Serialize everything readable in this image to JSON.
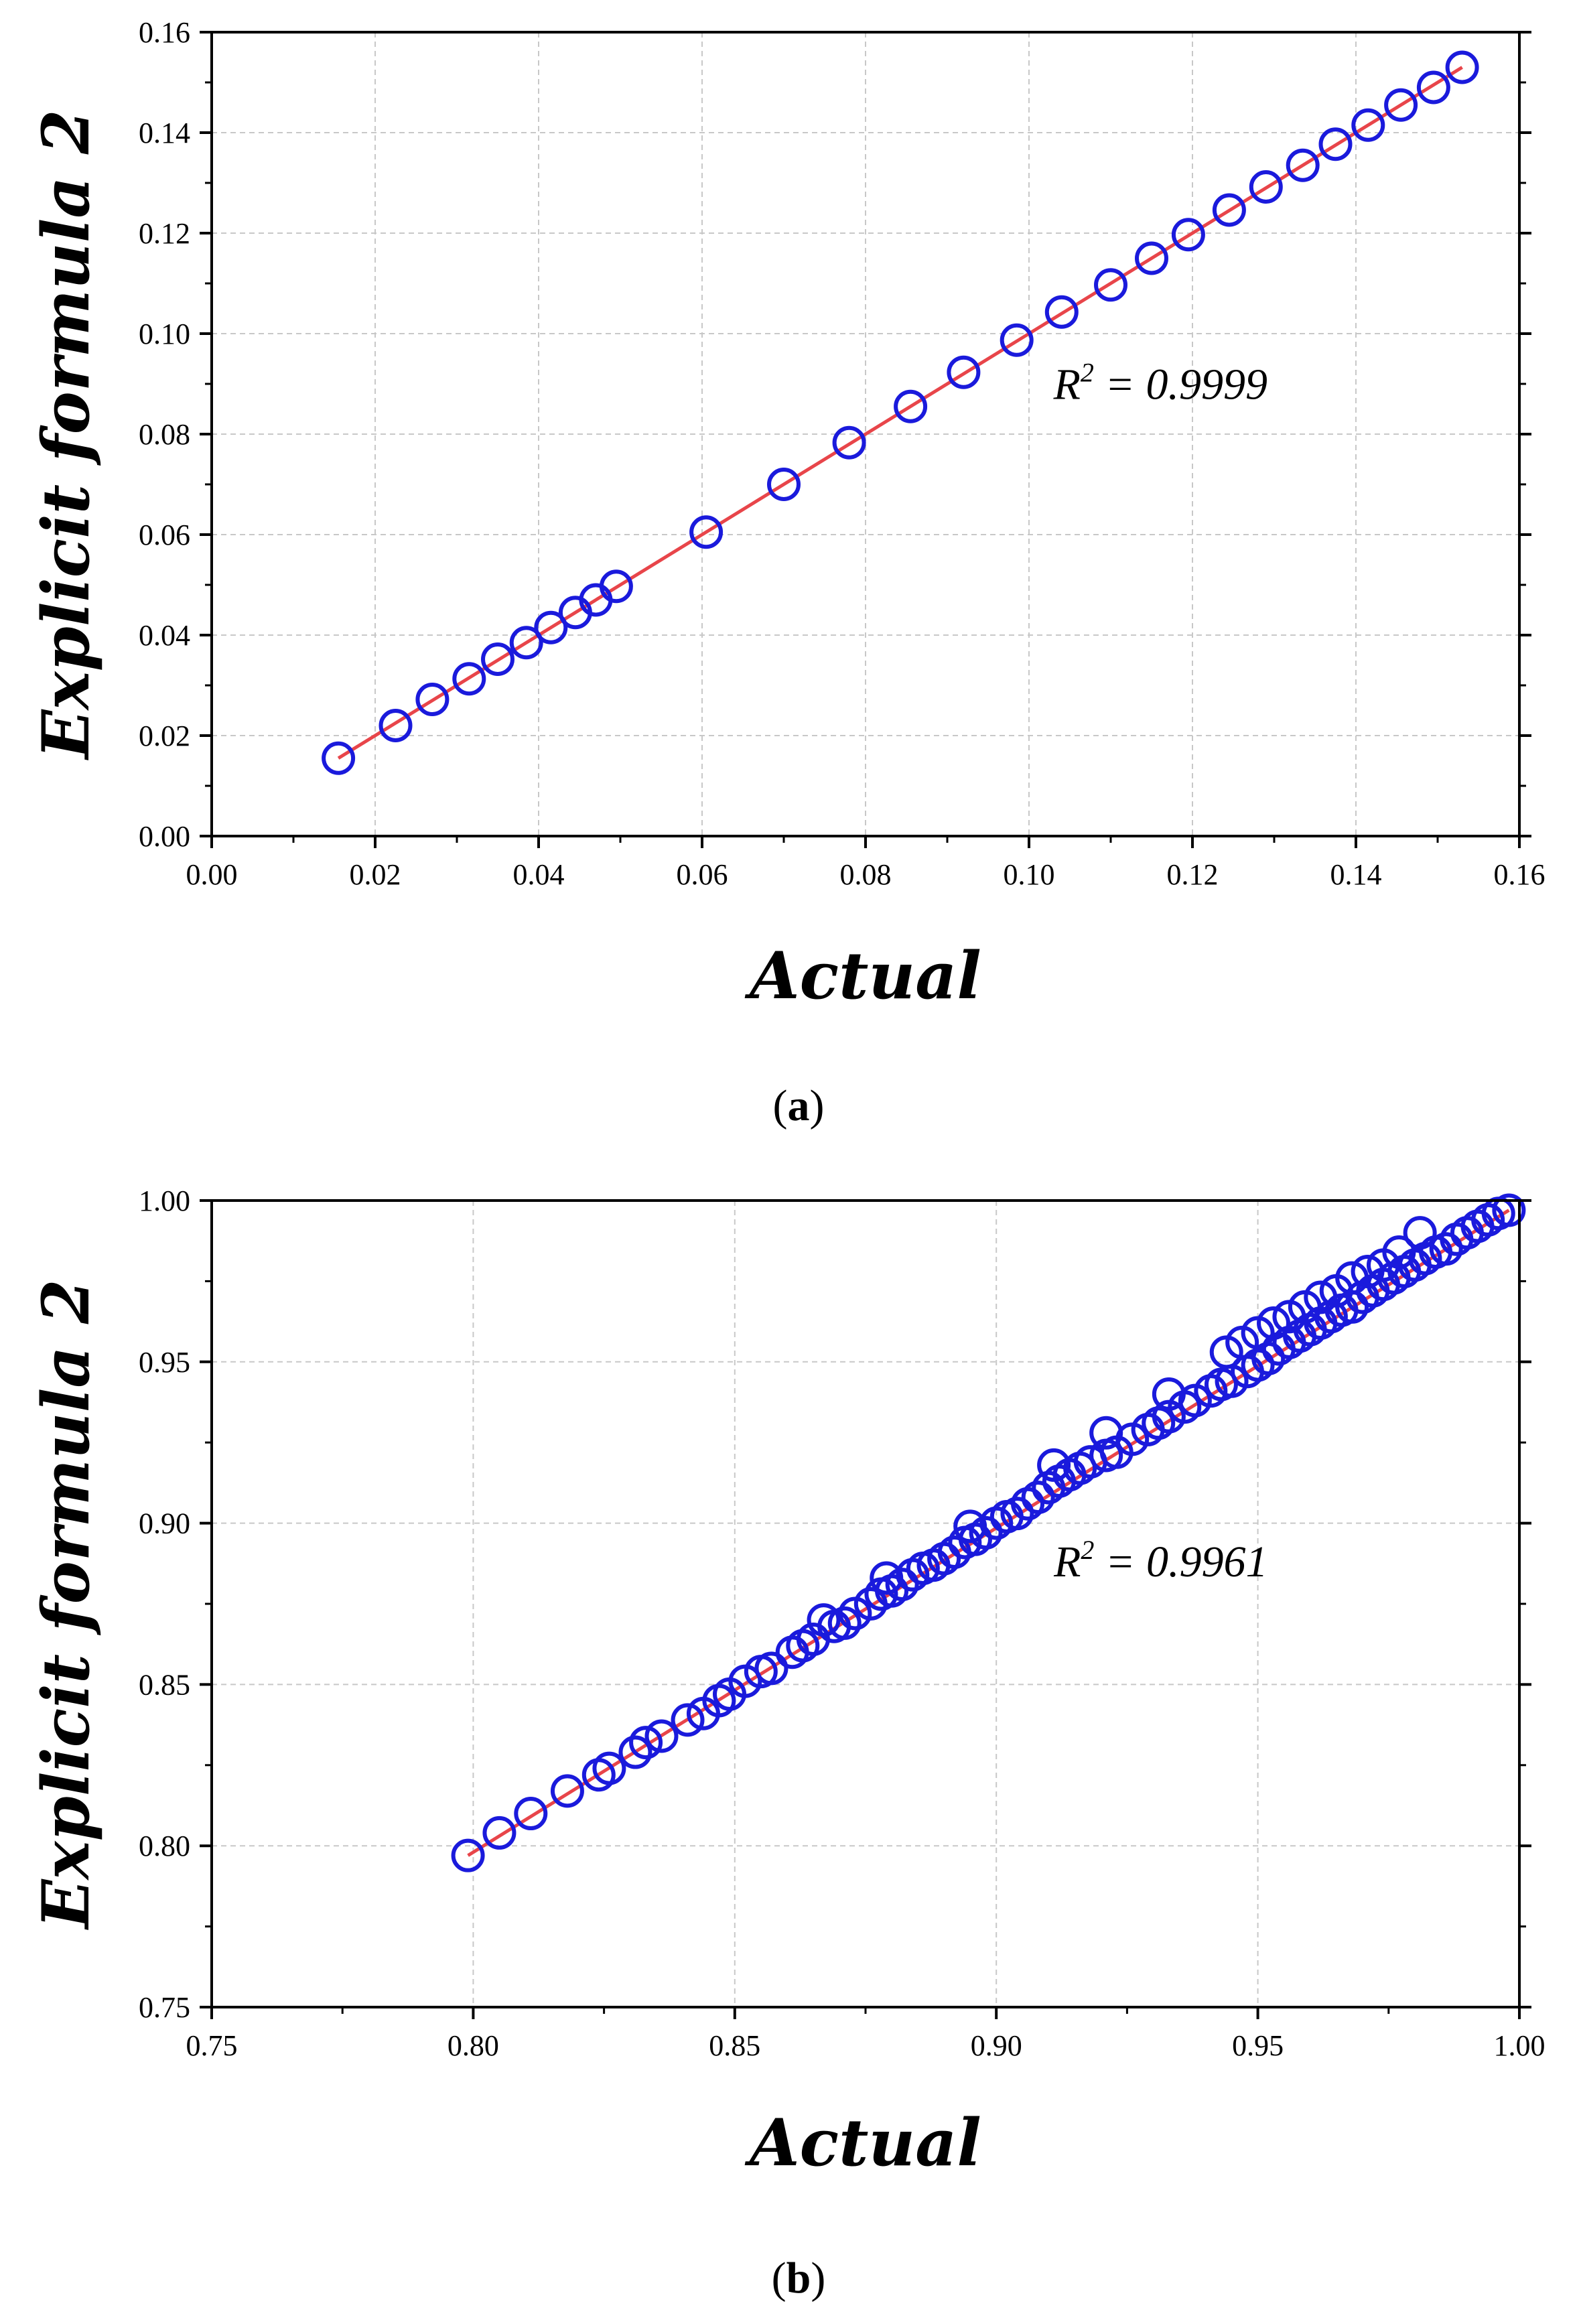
{
  "chart_data": [
    {
      "type": "scatter",
      "panel_label": "(a)",
      "panel_label_parts": [
        "(",
        "a",
        ")"
      ],
      "xlabel": "Actual",
      "ylabel": "Explicit formula 2",
      "xlim": [
        0.0,
        0.16
      ],
      "ylim": [
        0.0,
        0.16
      ],
      "xticks": [
        0.0,
        0.02,
        0.04,
        0.06,
        0.08,
        0.1,
        0.12,
        0.14,
        0.16
      ],
      "yticks": [
        0.0,
        0.02,
        0.04,
        0.06,
        0.08,
        0.1,
        0.12,
        0.14,
        0.16
      ],
      "xtick_labels": [
        "0.00",
        "0.02",
        "0.04",
        "0.06",
        "0.08",
        "0.10",
        "0.12",
        "0.14",
        "0.16"
      ],
      "ytick_labels": [
        "0.00",
        "0.02",
        "0.04",
        "0.06",
        "0.08",
        "0.10",
        "0.12",
        "0.14",
        "0.16"
      ],
      "grid": true,
      "annotation": {
        "symbol": "R",
        "superscript": "2",
        "text": " = 0.9999",
        "at": [
          0.103,
          0.087
        ]
      },
      "fit_line": {
        "x": [
          0.0155,
          0.153
        ],
        "y": [
          0.0155,
          0.153
        ],
        "color": "#e8454a"
      },
      "marker_color": "#1a1adc",
      "series": [
        {
          "name": "data",
          "x": [
            0.0155,
            0.0225,
            0.027,
            0.0315,
            0.035,
            0.0385,
            0.0415,
            0.0445,
            0.047,
            0.0495,
            0.0605,
            0.07,
            0.078,
            0.0855,
            0.092,
            0.0985,
            0.104,
            0.11,
            0.115,
            0.1195,
            0.1245,
            0.129,
            0.1335,
            0.1375,
            0.1415,
            0.1455,
            0.1495,
            0.153
          ],
          "y": [
            0.0155,
            0.022,
            0.0272,
            0.0313,
            0.0352,
            0.0385,
            0.0415,
            0.0445,
            0.047,
            0.0497,
            0.0605,
            0.07,
            0.0783,
            0.0855,
            0.0923,
            0.0987,
            0.1043,
            0.1097,
            0.115,
            0.1197,
            0.1246,
            0.1292,
            0.1335,
            0.1377,
            0.1415,
            0.1455,
            0.149,
            0.153
          ]
        }
      ]
    },
    {
      "type": "scatter",
      "panel_label": "(b)",
      "panel_label_parts": [
        "(",
        "b",
        ")"
      ],
      "xlabel": "Actual",
      "ylabel": "Explicit formula 2",
      "xlim": [
        0.75,
        1.0
      ],
      "ylim": [
        0.75,
        1.0
      ],
      "xticks": [
        0.75,
        0.8,
        0.85,
        0.9,
        0.95,
        1.0
      ],
      "yticks": [
        0.75,
        0.8,
        0.85,
        0.9,
        0.95,
        1.0
      ],
      "xtick_labels": [
        "0.75",
        "0.80",
        "0.85",
        "0.90",
        "0.95",
        "1.00"
      ],
      "ytick_labels": [
        "0.75",
        "0.80",
        "0.85",
        "0.90",
        "0.95",
        "1.00"
      ],
      "grid": true,
      "annotation": {
        "symbol": "R",
        "superscript": "2",
        "text": " = 0.9961",
        "at": [
          0.911,
          0.8835
        ]
      },
      "fit_line": {
        "x": [
          0.799,
          0.998
        ],
        "y": [
          0.797,
          0.997
        ],
        "color": "#e8454a"
      },
      "marker_color": "#1a1adc",
      "series": [
        {
          "name": "data",
          "x": [
            0.799,
            0.805,
            0.811,
            0.818,
            0.824,
            0.826,
            0.831,
            0.833,
            0.836,
            0.841,
            0.844,
            0.847,
            0.849,
            0.852,
            0.855,
            0.857,
            0.861,
            0.863,
            0.865,
            0.869,
            0.871,
            0.873,
            0.876,
            0.878,
            0.88,
            0.882,
            0.884,
            0.886,
            0.888,
            0.89,
            0.892,
            0.894,
            0.896,
            0.898,
            0.9,
            0.902,
            0.904,
            0.906,
            0.908,
            0.91,
            0.912,
            0.914,
            0.916,
            0.918,
            0.921,
            0.923,
            0.926,
            0.929,
            0.931,
            0.933,
            0.936,
            0.938,
            0.941,
            0.943,
            0.945,
            0.948,
            0.95,
            0.952,
            0.954,
            0.956,
            0.958,
            0.96,
            0.962,
            0.964,
            0.966,
            0.968,
            0.97,
            0.972,
            0.974,
            0.976,
            0.978,
            0.98,
            0.982,
            0.984,
            0.986,
            0.988,
            0.99,
            0.992,
            0.994,
            0.996,
            0.998,
            0.944,
            0.947,
            0.95,
            0.953,
            0.956,
            0.959,
            0.962,
            0.965,
            0.968,
            0.971,
            0.974,
            0.977,
            0.981,
            0.921,
            0.933,
            0.879,
            0.867,
            0.911,
            0.895
          ],
          "y": [
            0.797,
            0.804,
            0.81,
            0.817,
            0.822,
            0.824,
            0.829,
            0.832,
            0.834,
            0.839,
            0.841,
            0.845,
            0.847,
            0.851,
            0.854,
            0.855,
            0.86,
            0.862,
            0.864,
            0.868,
            0.869,
            0.872,
            0.875,
            0.878,
            0.879,
            0.881,
            0.884,
            0.886,
            0.887,
            0.889,
            0.891,
            0.894,
            0.895,
            0.897,
            0.9,
            0.902,
            0.903,
            0.906,
            0.908,
            0.911,
            0.913,
            0.915,
            0.917,
            0.919,
            0.921,
            0.922,
            0.926,
            0.929,
            0.931,
            0.933,
            0.936,
            0.938,
            0.941,
            0.943,
            0.944,
            0.947,
            0.949,
            0.951,
            0.954,
            0.956,
            0.958,
            0.96,
            0.962,
            0.964,
            0.966,
            0.967,
            0.97,
            0.972,
            0.974,
            0.976,
            0.978,
            0.98,
            0.982,
            0.984,
            0.985,
            0.988,
            0.99,
            0.992,
            0.994,
            0.996,
            0.997,
            0.953,
            0.956,
            0.959,
            0.962,
            0.964,
            0.967,
            0.97,
            0.972,
            0.976,
            0.978,
            0.98,
            0.984,
            0.99,
            0.928,
            0.94,
            0.883,
            0.87,
            0.918,
            0.899
          ]
        }
      ]
    }
  ]
}
